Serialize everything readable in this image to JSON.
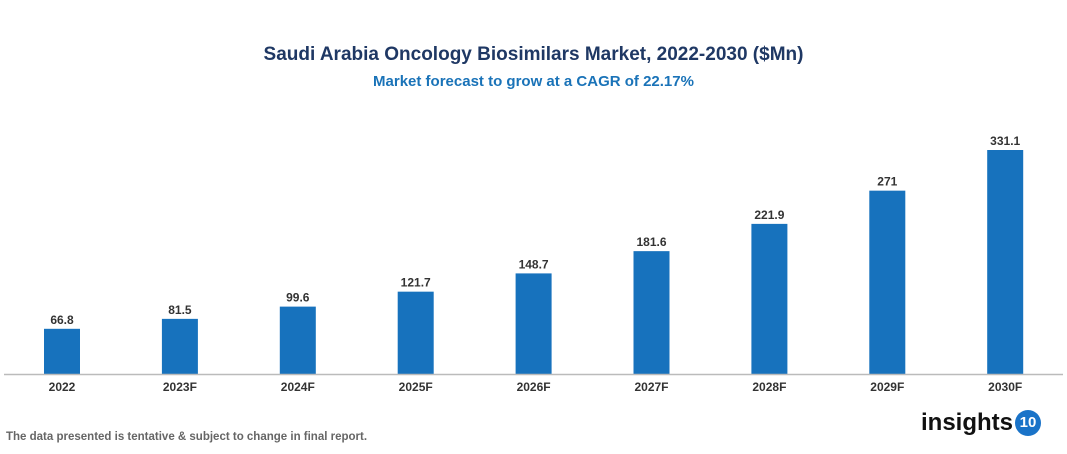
{
  "chart_data": {
    "type": "bar",
    "title": "Saudi Arabia Oncology Biosimilars Market, 2022-2030 ($Mn)",
    "subtitle": "Market forecast to grow at a CAGR of 22.17%",
    "categories": [
      "2022",
      "2023F",
      "2024F",
      "2025F",
      "2026F",
      "2027F",
      "2028F",
      "2029F",
      "2030F"
    ],
    "values": [
      66.8,
      81.5,
      99.6,
      121.7,
      148.7,
      181.6,
      221.9,
      271,
      331.1
    ],
    "value_labels": [
      "66.8",
      "81.5",
      "99.6",
      "121.7",
      "148.7",
      "181.6",
      "221.9",
      "271",
      "331.1"
    ],
    "xlabel": "",
    "ylabel": "",
    "ylim": [
      0,
      331.1
    ],
    "grid": false,
    "bar_color": "#1772bd"
  },
  "footnote": "The data presented is tentative & subject to change in final report.",
  "logo": {
    "text": "insights",
    "badge": "10"
  }
}
